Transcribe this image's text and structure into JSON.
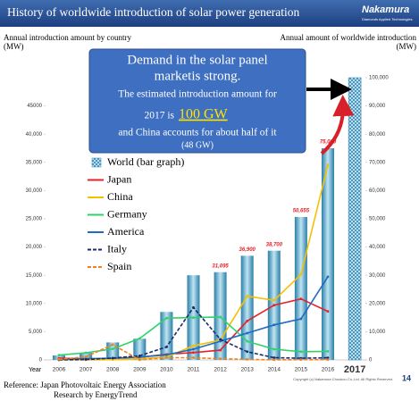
{
  "header": {
    "title": "History of worldwide introduction of solar power generation",
    "logo": "Nakamura",
    "logo_sub": "Diamonds Applied Technologies"
  },
  "callout": {
    "line1": "Demand in the solar panel",
    "line2": "marketis strong.",
    "line3": "The estimated introduction amount for",
    "line4": "2017 is",
    "highlight": "100 GW",
    "line5": "and China accounts for about half of it",
    "line6": "(48 GW)"
  },
  "chart_data": {
    "type": "combo",
    "ylabel": "Annual introduction amount by country",
    "yunit": "(MW)",
    "y2label": "Annual amount of worldwide introduction",
    "y2unit": "(MW)",
    "xlabel": "Year",
    "categories": [
      "2006",
      "2007",
      "2008",
      "2009",
      "2010",
      "2011",
      "2012",
      "2013",
      "2014",
      "2015",
      "2016",
      "2017"
    ],
    "ylim": [
      0,
      50000
    ],
    "yticks": [
      0,
      {
        "value": 5000,
        "label": "5,000"
      },
      {
        "value": 10000,
        "label": "10,000"
      },
      {
        "value": 15000,
        "label": "15,000"
      },
      {
        "value": 20000,
        "label": "20,000"
      },
      {
        "value": 25000,
        "label": "25,000"
      },
      {
        "value": 30000,
        "label": "30,000"
      },
      {
        "value": 35000,
        "label": "35,000"
      },
      {
        "value": 40000,
        "label": "40,000"
      },
      45000
    ],
    "y2lim": [
      0,
      100000
    ],
    "y2ticks": [
      0,
      {
        "value": 10000,
        "label": "10,000"
      },
      {
        "value": 20000,
        "label": "20,000"
      },
      {
        "value": 30000,
        "label": "30,000"
      },
      {
        "value": 40000,
        "label": "40,000"
      },
      {
        "value": 50000,
        "label": "50,000"
      },
      {
        "value": 60000,
        "label": "60,000"
      },
      {
        "value": 70000,
        "label": "70,000"
      },
      {
        "value": 80000,
        "label": "80,000"
      },
      {
        "value": 90000,
        "label": "90,000"
      },
      {
        "value": 100000,
        "label": "100,000"
      }
    ],
    "series": [
      {
        "name": "World (bar graph)",
        "type": "bar",
        "axis": "y2",
        "color": "#5aaed0",
        "values": [
          1600,
          2500,
          6200,
          7500,
          17000,
          30000,
          31095,
          36900,
          38700,
          50655,
          75000,
          100000
        ],
        "value_labels": [
          null,
          null,
          null,
          null,
          null,
          null,
          "31,095",
          "36,900",
          "38,700",
          "50,655",
          "75,000",
          null
        ],
        "hatch": [
          false,
          false,
          false,
          false,
          false,
          false,
          false,
          false,
          false,
          false,
          false,
          true
        ]
      },
      {
        "name": "Japan",
        "type": "line",
        "color": "#e8202a",
        "dash": false,
        "values": [
          300,
          200,
          230,
          480,
          990,
          1300,
          1718,
          6900,
          9700,
          10811,
          8600,
          null
        ]
      },
      {
        "name": "China",
        "type": "line",
        "color": "#f5c000",
        "dash": false,
        "values": [
          0,
          20,
          50,
          200,
          500,
          2500,
          3500,
          11300,
          10560,
          15150,
          34540,
          null
        ]
      },
      {
        "name": "Germany",
        "type": "line",
        "color": "#2ed36a",
        "dash": false,
        "values": [
          850,
          1270,
          1950,
          3800,
          7400,
          7500,
          7604,
          3304,
          1900,
          1460,
          1520,
          null
        ]
      },
      {
        "name": "America",
        "type": "line",
        "color": "#1f6bbf",
        "dash": false,
        "values": [
          100,
          200,
          300,
          500,
          900,
          1900,
          3313,
          4751,
          6201,
          7283,
          14730,
          null
        ]
      },
      {
        "name": "Italy",
        "type": "line",
        "color": "#1a2a6c",
        "dash": true,
        "values": [
          10,
          70,
          340,
          720,
          2300,
          9300,
          3647,
          1461,
          400,
          300,
          373,
          null
        ]
      },
      {
        "name": "Spain",
        "type": "line",
        "color": "#f08020",
        "dash": true,
        "values": [
          100,
          560,
          2700,
          20,
          400,
          400,
          200,
          100,
          20,
          50,
          50,
          null
        ]
      }
    ]
  },
  "footer": {
    "reference": "Reference: Japan Photovoltaic Energy Association",
    "research": "Research by EnergyTrend",
    "copyright": "Copyright (c) Nakamura Choukou Co.,Ltd. All Rights Reserved.",
    "page": "14"
  }
}
